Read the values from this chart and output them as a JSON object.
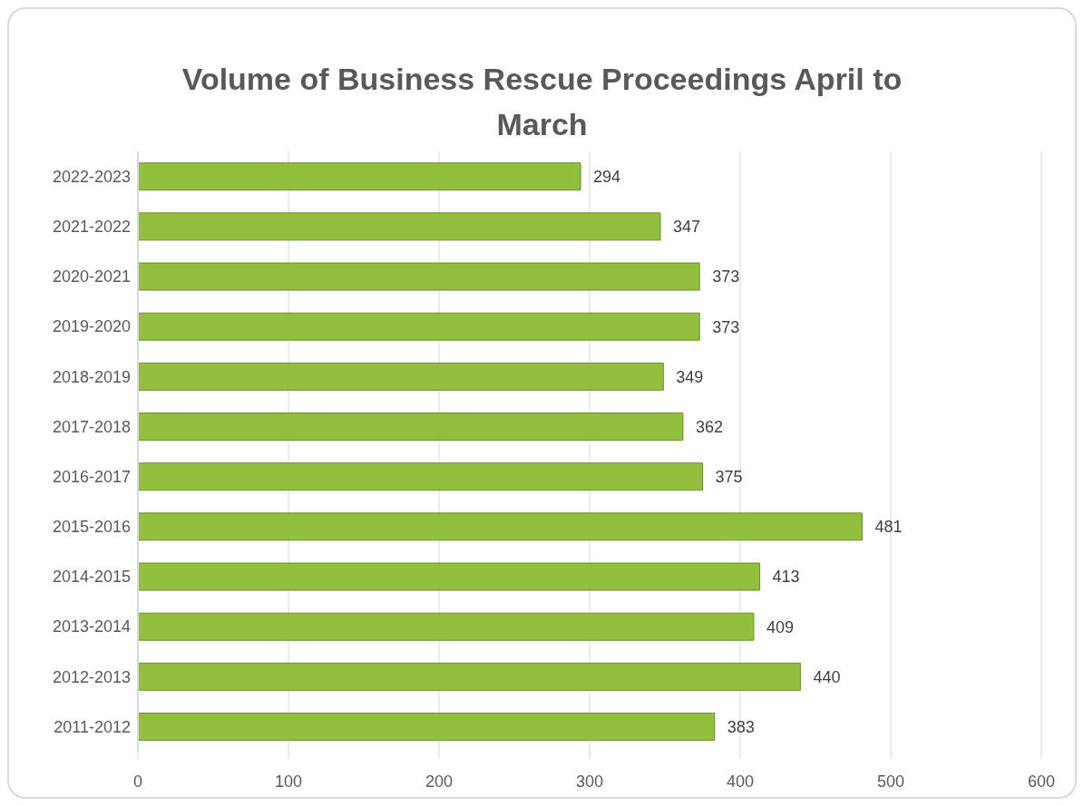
{
  "chart_data": {
    "type": "bar",
    "orientation": "horizontal",
    "title": "Volume of Business Rescue Proceedings April to March",
    "categories": [
      "2022-2023",
      "2021-2022",
      "2020-2021",
      "2019-2020",
      "2018-2019",
      "2017-2018",
      "2016-2017",
      "2015-2016",
      "2014-2015",
      "2013-2014",
      "2012-2013",
      "2011-2012"
    ],
    "values": [
      294,
      347,
      373,
      373,
      349,
      362,
      375,
      481,
      413,
      409,
      440,
      383
    ],
    "color": "#92c03e",
    "xlim": [
      0,
      600
    ],
    "xticks": [
      0,
      100,
      200,
      300,
      400,
      500,
      600
    ],
    "grid": "x",
    "data_labels": true
  }
}
